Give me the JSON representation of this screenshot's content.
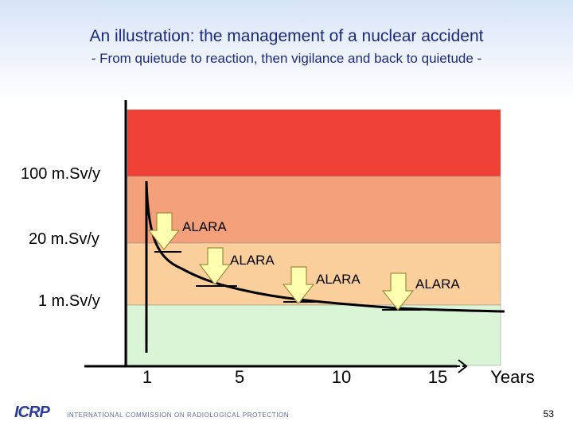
{
  "header": {
    "title": "An illustration: the management of a nuclear accident",
    "subtitle": "- From quietude to reaction, then vigilance and back to quietude -"
  },
  "levels": {
    "high": "100 m.Sv/y",
    "mid": "20 m.Sv/y",
    "low": "1 m.Sv/y"
  },
  "x_axis": {
    "ticks": [
      "1",
      "5",
      "10",
      "15"
    ],
    "unit": "Years"
  },
  "alara": [
    "ALARA",
    "ALARA",
    "ALARA",
    "ALARA"
  ],
  "colors": {
    "band_red": "#ef4136",
    "band_orange": "#f4a07a",
    "band_peach": "#fbcf9c",
    "band_green": "#d9f5d6",
    "arrow_fill": "#ffffb0",
    "arrow_stroke": "#a08c3c",
    "title": "#1c2a7a"
  },
  "footer": {
    "logo": "ICRP",
    "org": "INTERNATIONAL COMMISSION ON RADIOLOGICAL PROTECTION",
    "page": "53"
  }
}
